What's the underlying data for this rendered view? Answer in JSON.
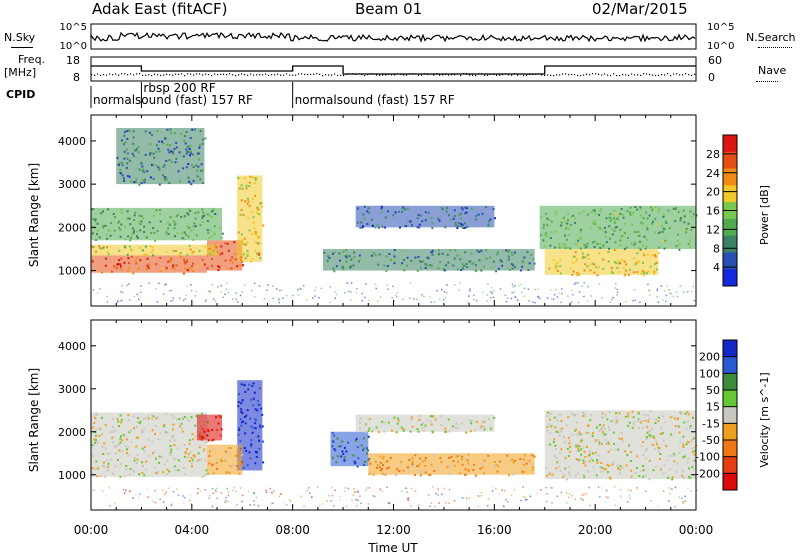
{
  "header": {
    "station": "Adak East (fitACF)",
    "beam": "Beam 01",
    "date": "02/Mar/2015"
  },
  "strip_labels": {
    "nsky": "N.Sky",
    "nsky_ticks": [
      "10^5",
      "10^0"
    ],
    "nsearch": "N.Search",
    "nsearch_ticks": [
      "10^5",
      "10^0"
    ],
    "freq": "Freq.",
    "freq_unit": "[MHz]",
    "freq_ticks": [
      "18",
      "8"
    ],
    "nave": "Nave",
    "nave_ticks": [
      "60",
      "0"
    ],
    "cpid": "CPID",
    "cpid_segments": [
      {
        "text": "normalsound (fast) 157 RF",
        "start_h": 0,
        "end_h": 2
      },
      {
        "text": "rbsp 200 RF",
        "start_h": 2,
        "end_h": 8
      },
      {
        "text": "normalsound (fast) 157 RF",
        "start_h": 8,
        "end_h": 24
      }
    ]
  },
  "colors": {
    "power_scale": [
      "#1428dc",
      "#2850b4",
      "#3c8264",
      "#50aa50",
      "#78c850",
      "#f0c828",
      "#f08c14",
      "#e65014",
      "#dc1414"
    ],
    "velocity_scale": [
      "#1428c8",
      "#285ad2",
      "#3c8c3c",
      "#64c832",
      "#c8c8c0",
      "#f0a01e",
      "#f07814",
      "#e63c14",
      "#dc0a0a"
    ]
  },
  "chart_data": [
    {
      "type": "heatmap",
      "title": "Power",
      "xlabel": "Time UT",
      "ylabel": "Slant Range [km]",
      "xlim": [
        0,
        24
      ],
      "ylim": [
        180,
        4600
      ],
      "x_ticks": [
        "00:00",
        "04:00",
        "08:00",
        "12:00",
        "16:00",
        "20:00",
        "00:00"
      ],
      "y_ticks": [
        1000,
        2000,
        3000,
        4000
      ],
      "colorbar": {
        "label": "Power [dB]",
        "ticks": [
          4,
          8,
          12,
          16,
          20,
          24,
          28
        ],
        "range": [
          0,
          32
        ]
      },
      "regions": [
        {
          "t": [
            0,
            4.6
          ],
          "r": [
            950,
            1350
          ],
          "value": 26
        },
        {
          "t": [
            4.6,
            6.0
          ],
          "r": [
            1000,
            1700
          ],
          "value": 27
        },
        {
          "t": [
            0,
            5.0
          ],
          "r": [
            1350,
            1600
          ],
          "value": 18
        },
        {
          "t": [
            0,
            5.2
          ],
          "r": [
            1700,
            2450
          ],
          "value": 12
        },
        {
          "t": [
            1.0,
            4.5
          ],
          "r": [
            3000,
            4300
          ],
          "value": 8
        },
        {
          "t": [
            5.8,
            6.8
          ],
          "r": [
            1200,
            3200
          ],
          "value": 20
        },
        {
          "t": [
            9.2,
            17.6
          ],
          "r": [
            1000,
            1500
          ],
          "value": 10
        },
        {
          "t": [
            10.5,
            16.0
          ],
          "r": [
            2000,
            2500
          ],
          "value": 7
        },
        {
          "t": [
            18.0,
            22.5
          ],
          "r": [
            900,
            1500
          ],
          "value": 20
        },
        {
          "t": [
            17.8,
            24.0
          ],
          "r": [
            1500,
            2500
          ],
          "value": 13
        }
      ]
    },
    {
      "type": "heatmap",
      "title": "Velocity",
      "xlabel": "Time UT",
      "ylabel": "Slant Range [km]",
      "xlim": [
        0,
        24
      ],
      "ylim": [
        180,
        4600
      ],
      "x_ticks": [
        "00:00",
        "04:00",
        "08:00",
        "12:00",
        "16:00",
        "20:00",
        "00:00"
      ],
      "y_ticks": [
        1000,
        2000,
        3000,
        4000
      ],
      "colorbar": {
        "label": "Velocity [m s^-1]",
        "ticks": [
          200,
          100,
          50,
          15,
          -15,
          -50,
          -100,
          -200
        ],
        "range": [
          -250,
          250
        ]
      },
      "regions": [
        {
          "t": [
            0,
            4.6
          ],
          "r": [
            950,
            2450
          ],
          "value": 0
        },
        {
          "t": [
            4.2,
            5.2
          ],
          "r": [
            1800,
            2400
          ],
          "value": -220
        },
        {
          "t": [
            5.8,
            6.8
          ],
          "r": [
            1100,
            3200
          ],
          "value": 210
        },
        {
          "t": [
            4.6,
            6.0
          ],
          "r": [
            1000,
            1700
          ],
          "value": -60
        },
        {
          "t": [
            9.5,
            11.0
          ],
          "r": [
            1200,
            2000
          ],
          "value": 160
        },
        {
          "t": [
            11.0,
            17.6
          ],
          "r": [
            1000,
            1500
          ],
          "value": -70
        },
        {
          "t": [
            10.5,
            16.0
          ],
          "r": [
            2000,
            2400
          ],
          "value": 0
        },
        {
          "t": [
            18.0,
            24.0
          ],
          "r": [
            900,
            2500
          ],
          "value": 0
        }
      ]
    }
  ]
}
